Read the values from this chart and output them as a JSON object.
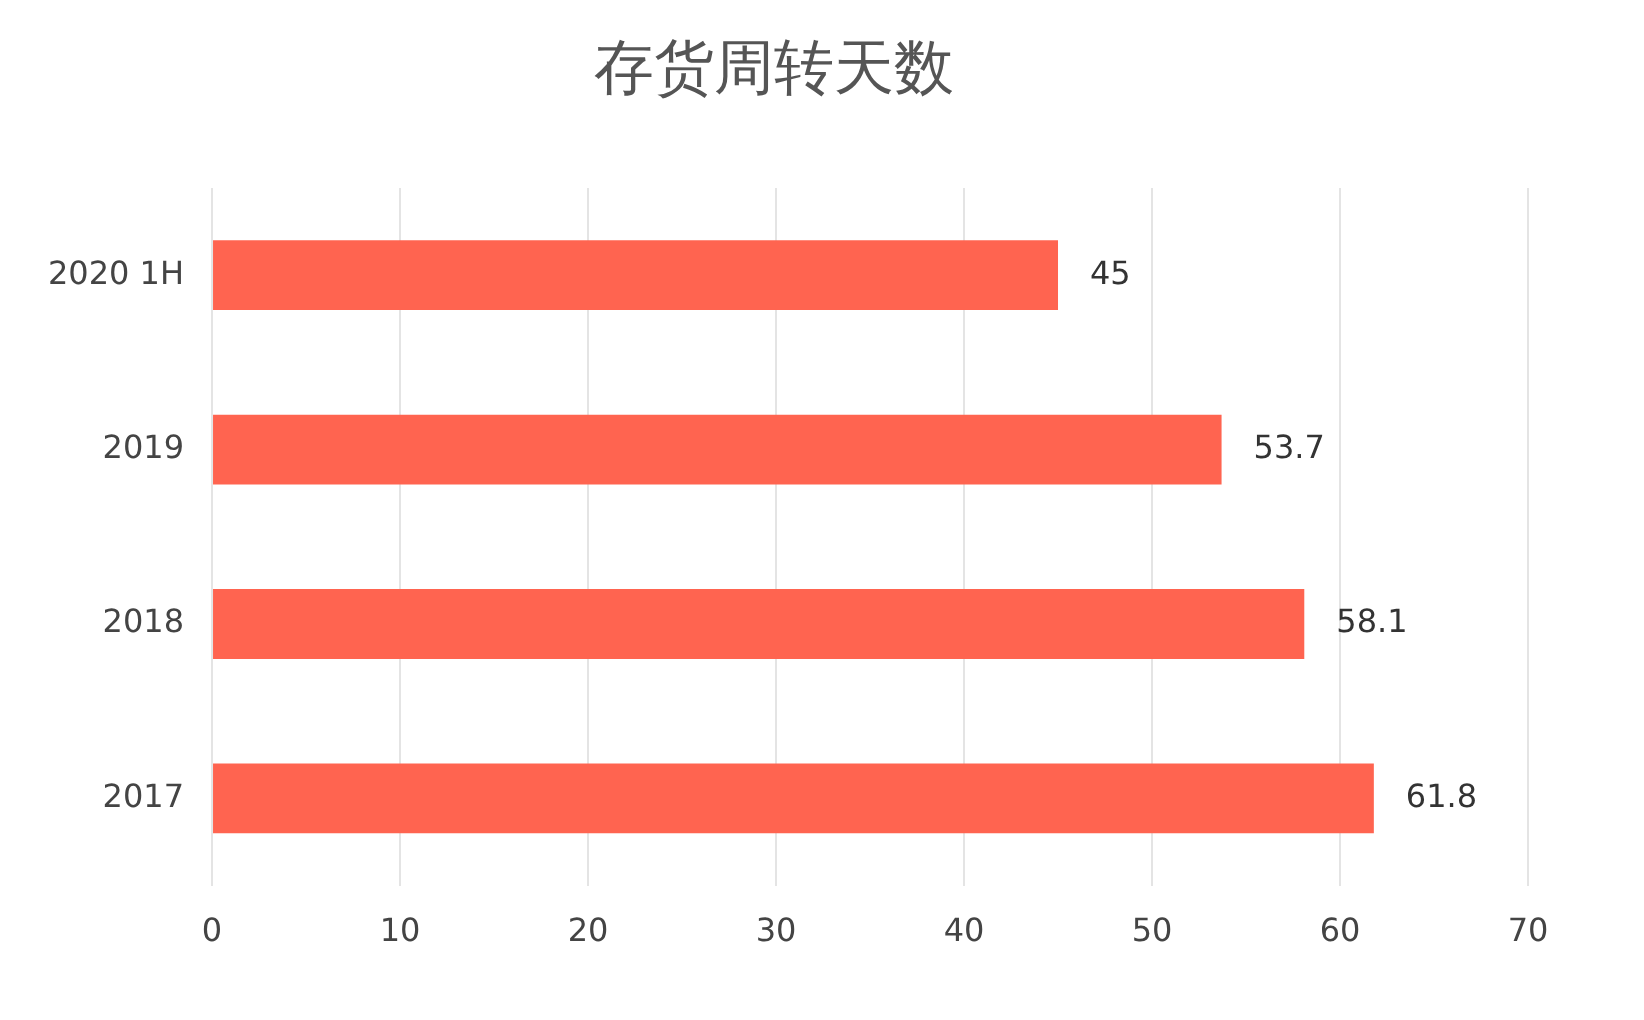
{
  "chart_data": {
    "type": "bar",
    "orientation": "horizontal",
    "title": "存货周转天数",
    "categories": [
      "2020 1H",
      "2019",
      "2018",
      "2017"
    ],
    "values": [
      45,
      53.7,
      58.1,
      61.8
    ],
    "color": "#ff6450",
    "xlim": [
      0,
      70
    ],
    "xticks": [
      0,
      10,
      20,
      30,
      40,
      50,
      60,
      70
    ],
    "grid": "x",
    "data_labels": true,
    "legend": false
  }
}
